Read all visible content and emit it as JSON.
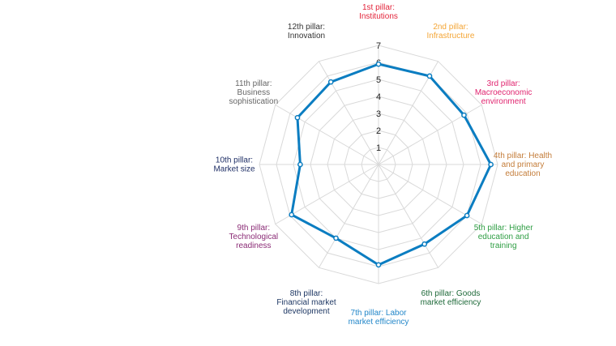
{
  "chart_data": {
    "type": "radar",
    "title": "",
    "ylim": [
      0,
      7
    ],
    "ticks": [
      1,
      2,
      3,
      4,
      5,
      6,
      7
    ],
    "categories": [
      {
        "name": "1st pillar: Institutions",
        "lines": [
          "1st pillar:",
          "Institutions"
        ],
        "color": "#e3253b",
        "anchor": "middle"
      },
      {
        "name": "2nd pillar: Infrastructure",
        "lines": [
          "2nd pillar:",
          "Infrastructure"
        ],
        "color": "#f4a535",
        "anchor": "middle"
      },
      {
        "name": "3rd pillar: Macroeconomic environment",
        "lines": [
          "3rd pillar:",
          "Macroeconomic",
          "environment"
        ],
        "color": "#e0246f",
        "anchor": "middle"
      },
      {
        "name": "4th pillar: Health and primary education",
        "lines": [
          "4th pillar: Health",
          "and primary",
          "education"
        ],
        "color": "#c47d3a",
        "anchor": "middle"
      },
      {
        "name": "5th pillar: Higher education and training",
        "lines": [
          "5th pillar: Higher",
          "education and",
          "training"
        ],
        "color": "#2f9e44",
        "anchor": "middle"
      },
      {
        "name": "6th pillar: Goods market efficiency",
        "lines": [
          "6th pillar: Goods",
          "market efficiency"
        ],
        "color": "#1f6a3a",
        "anchor": "middle"
      },
      {
        "name": "7th pillar: Labor market efficiency",
        "lines": [
          "7th pillar: Labor",
          "market efficiency"
        ],
        "color": "#2387c9",
        "anchor": "middle"
      },
      {
        "name": "8th pillar: Financial market development",
        "lines": [
          "8th pillar:",
          "Financial market",
          "development"
        ],
        "color": "#1f3864",
        "anchor": "middle"
      },
      {
        "name": "9th pillar: Technological readiness",
        "lines": [
          "9th pillar:",
          "Technological",
          "readiness"
        ],
        "color": "#8b2c76",
        "anchor": "middle"
      },
      {
        "name": "10th pillar: Market size",
        "lines": [
          "10th pillar:",
          "Market size"
        ],
        "color": "#1f2f66",
        "anchor": "middle"
      },
      {
        "name": "11th pillar: Business sophistication",
        "lines": [
          "11th pillar:",
          "Business",
          "sophistication"
        ],
        "color": "#666666",
        "anchor": "middle"
      },
      {
        "name": "12th pillar: Innovation",
        "lines": [
          "12th pillar:",
          "Innovation"
        ],
        "color": "#333333",
        "anchor": "middle"
      }
    ],
    "series": [
      {
        "name": "Score",
        "color": "#0b7dc1",
        "values": [
          5.9,
          6.0,
          5.8,
          6.6,
          6.0,
          5.4,
          5.9,
          5.0,
          5.9,
          4.6,
          5.5,
          5.6
        ]
      }
    ],
    "grid": true,
    "legend": "none"
  }
}
